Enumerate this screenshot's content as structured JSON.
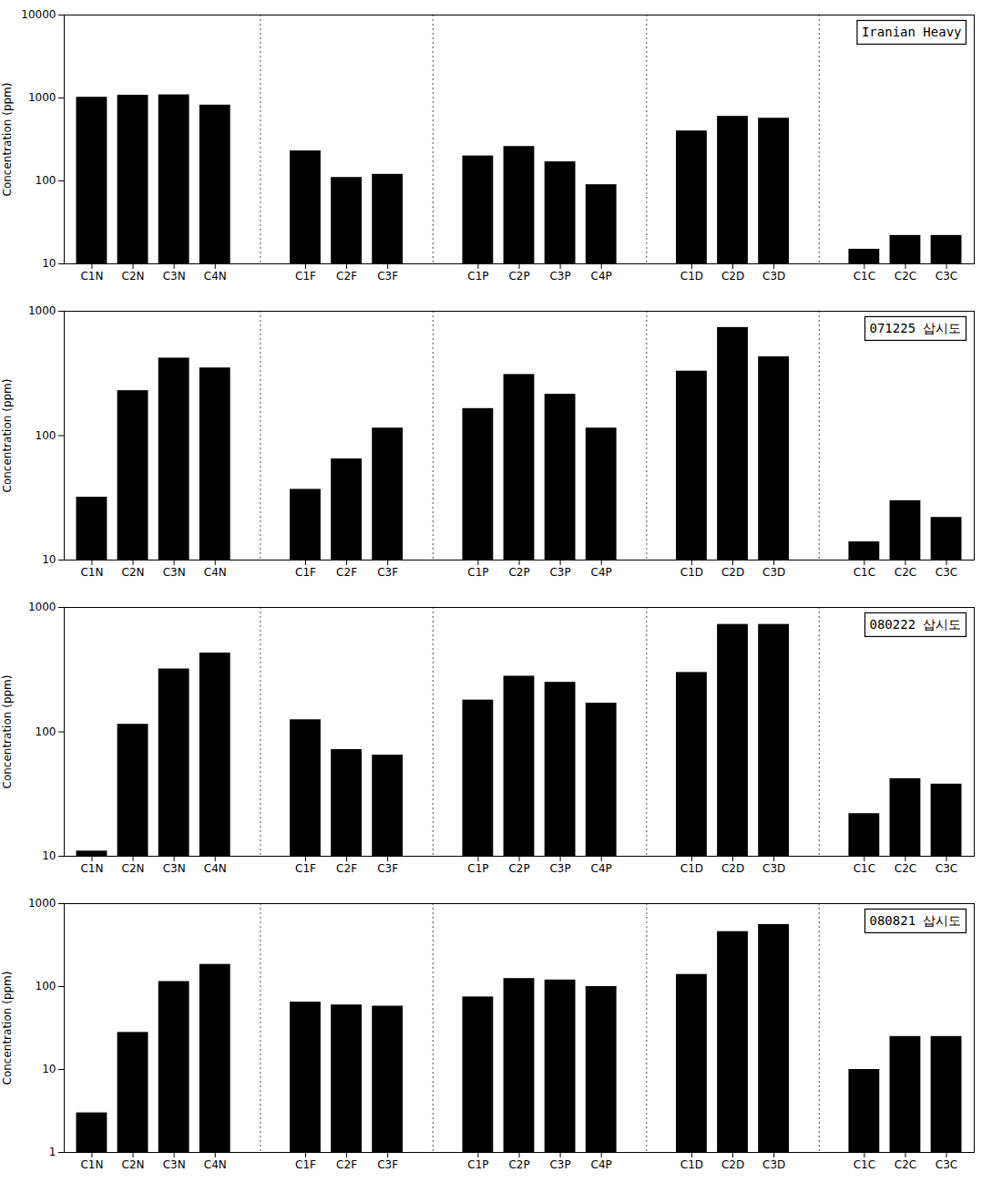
{
  "chart_data": [
    {
      "type": "bar",
      "annotations": [
        "Iranian Heavy"
      ],
      "ylabel": "Concentration (ppm)",
      "categories": [
        "C1N",
        "C2N",
        "C3N",
        "C4N",
        "C1F",
        "C2F",
        "C3F",
        "C1P",
        "C2P",
        "C3P",
        "C4P",
        "C1D",
        "C2D",
        "C3D",
        "C1C",
        "C2C",
        "C3C"
      ],
      "values": [
        1020,
        1080,
        1090,
        820,
        230,
        110,
        120,
        200,
        260,
        170,
        90,
        400,
        600,
        570,
        15,
        22,
        22
      ],
      "ylim": [
        10,
        10000
      ],
      "yticks": [
        10,
        100,
        1000,
        10000
      ],
      "log": "y",
      "grid": false
    },
    {
      "type": "bar",
      "annotations": [
        "071225 삽시도"
      ],
      "ylabel": "Concentration (ppm)",
      "categories": [
        "C1N",
        "C2N",
        "C3N",
        "C4N",
        "C1F",
        "C2F",
        "C3F",
        "C1P",
        "C2P",
        "C3P",
        "C4P",
        "C1D",
        "C2D",
        "C3D",
        "C1C",
        "C2C",
        "C3C"
      ],
      "values": [
        32,
        230,
        420,
        350,
        37,
        65,
        115,
        165,
        310,
        215,
        115,
        330,
        740,
        430,
        14,
        30,
        22
      ],
      "ylim": [
        10,
        1000
      ],
      "yticks": [
        10,
        100,
        1000
      ],
      "log": "y",
      "grid": false
    },
    {
      "type": "bar",
      "annotations": [
        "080222 삽시도"
      ],
      "ylabel": "Concentration (ppm)",
      "categories": [
        "C1N",
        "C2N",
        "C3N",
        "C4N",
        "C1F",
        "C2F",
        "C3F",
        "C1P",
        "C2P",
        "C3P",
        "C4P",
        "C1D",
        "C2D",
        "C3D",
        "C1C",
        "C2C",
        "C3C"
      ],
      "values": [
        11,
        115,
        320,
        430,
        125,
        72,
        65,
        180,
        280,
        250,
        170,
        300,
        730,
        730,
        22,
        42,
        38
      ],
      "ylim": [
        10,
        1000
      ],
      "yticks": [
        10,
        100,
        1000
      ],
      "log": "y",
      "grid": false
    },
    {
      "type": "bar",
      "annotations": [
        "080821 삽시도"
      ],
      "ylabel": "Concentration (ppm)",
      "categories": [
        "C1N",
        "C2N",
        "C3N",
        "C4N",
        "C1F",
        "C2F",
        "C3F",
        "C1P",
        "C2P",
        "C3P",
        "C4P",
        "C1D",
        "C2D",
        "C3D",
        "C1C",
        "C2C",
        "C3C"
      ],
      "values": [
        3,
        28,
        115,
        185,
        65,
        60,
        58,
        75,
        125,
        120,
        100,
        140,
        460,
        560,
        10,
        25,
        25
      ],
      "ylim": [
        1,
        1000
      ],
      "yticks": [
        1,
        10,
        100,
        1000
      ],
      "log": "y",
      "grid": false
    }
  ]
}
